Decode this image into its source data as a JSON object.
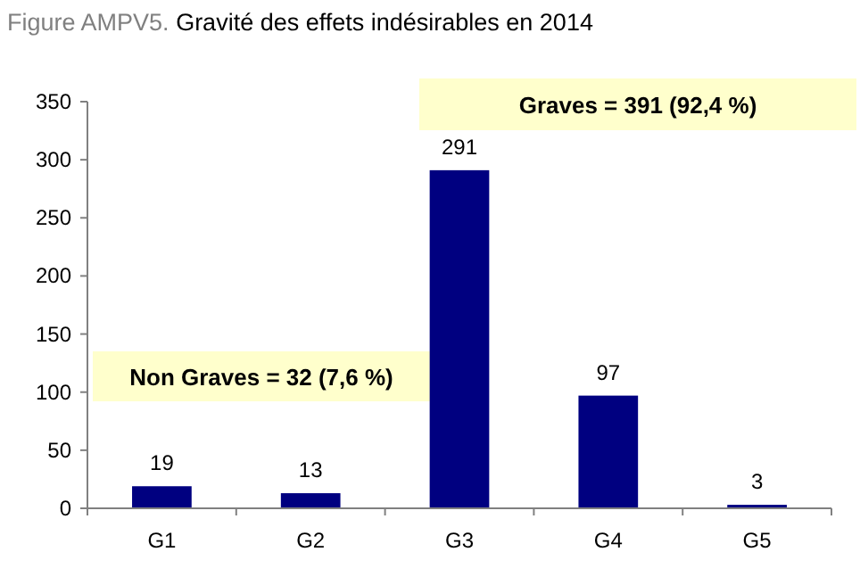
{
  "chart_data": {
    "type": "bar",
    "title": "Figure AMPV5.",
    "subtitle": "Gravité des effets indésirables en 2014",
    "categories": [
      "G1",
      "G2",
      "G3",
      "G4",
      "G5"
    ],
    "values": [
      19,
      13,
      291,
      97,
      3
    ],
    "color": "#000080",
    "ylim": [
      0,
      350
    ],
    "yticks": [
      0,
      50,
      100,
      150,
      200,
      250,
      300,
      350
    ],
    "grid": false,
    "data_labels": true,
    "annotations": [
      "Non Graves = 32 (7,6 %)",
      "Graves = 391 (92,4 %)"
    ]
  }
}
